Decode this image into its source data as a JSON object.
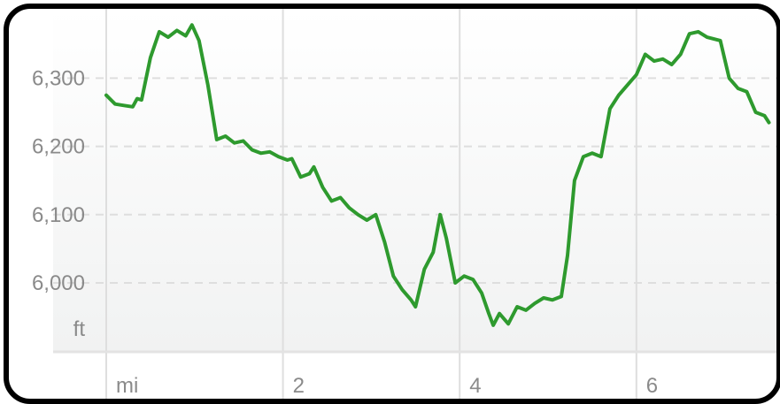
{
  "chart_data": {
    "type": "area",
    "y_ticks": [
      {
        "value": 6000,
        "label": "6,000"
      },
      {
        "value": 6100,
        "label": "6,100"
      },
      {
        "value": 6200,
        "label": "6,200"
      },
      {
        "value": 6300,
        "label": "6,300"
      }
    ],
    "x_ticks": [
      {
        "value": 0,
        "label": "mi"
      },
      {
        "value": 2,
        "label": "2"
      },
      {
        "value": 4,
        "label": "4"
      },
      {
        "value": 6,
        "label": "6"
      }
    ],
    "y_unit_label": "ft",
    "xlim": [
      -0.6,
      7.5
    ],
    "ylim": [
      5935,
      6395
    ],
    "grid": true,
    "colors": {
      "line": "#2e9a2e",
      "grid": "#dedede",
      "axis": "#e3e3e3"
    },
    "series": [
      {
        "values": [
          [
            0.0,
            6275
          ],
          [
            0.1,
            6262
          ],
          [
            0.2,
            6260
          ],
          [
            0.3,
            6258
          ],
          [
            0.35,
            6270
          ],
          [
            0.4,
            6268
          ],
          [
            0.5,
            6330
          ],
          [
            0.6,
            6368
          ],
          [
            0.7,
            6360
          ],
          [
            0.8,
            6370
          ],
          [
            0.9,
            6362
          ],
          [
            0.97,
            6378
          ],
          [
            1.05,
            6355
          ],
          [
            1.15,
            6290
          ],
          [
            1.25,
            6210
          ],
          [
            1.35,
            6215
          ],
          [
            1.45,
            6205
          ],
          [
            1.55,
            6208
          ],
          [
            1.65,
            6195
          ],
          [
            1.75,
            6190
          ],
          [
            1.85,
            6192
          ],
          [
            1.95,
            6185
          ],
          [
            2.05,
            6180
          ],
          [
            2.1,
            6182
          ],
          [
            2.2,
            6155
          ],
          [
            2.3,
            6160
          ],
          [
            2.35,
            6170
          ],
          [
            2.45,
            6140
          ],
          [
            2.55,
            6120
          ],
          [
            2.65,
            6125
          ],
          [
            2.75,
            6110
          ],
          [
            2.85,
            6100
          ],
          [
            2.95,
            6092
          ],
          [
            3.05,
            6100
          ],
          [
            3.15,
            6060
          ],
          [
            3.25,
            6010
          ],
          [
            3.35,
            5990
          ],
          [
            3.45,
            5975
          ],
          [
            3.5,
            5965
          ],
          [
            3.6,
            6020
          ],
          [
            3.7,
            6045
          ],
          [
            3.78,
            6100
          ],
          [
            3.85,
            6065
          ],
          [
            3.95,
            6000
          ],
          [
            4.05,
            6010
          ],
          [
            4.15,
            6005
          ],
          [
            4.25,
            5985
          ],
          [
            4.33,
            5955
          ],
          [
            4.38,
            5938
          ],
          [
            4.45,
            5955
          ],
          [
            4.55,
            5940
          ],
          [
            4.65,
            5965
          ],
          [
            4.75,
            5960
          ],
          [
            4.85,
            5970
          ],
          [
            4.95,
            5978
          ],
          [
            5.05,
            5975
          ],
          [
            5.15,
            5980
          ],
          [
            5.22,
            6040
          ],
          [
            5.3,
            6150
          ],
          [
            5.4,
            6185
          ],
          [
            5.5,
            6190
          ],
          [
            5.6,
            6185
          ],
          [
            5.7,
            6255
          ],
          [
            5.8,
            6275
          ],
          [
            5.9,
            6290
          ],
          [
            6.0,
            6305
          ],
          [
            6.1,
            6335
          ],
          [
            6.2,
            6325
          ],
          [
            6.3,
            6328
          ],
          [
            6.4,
            6320
          ],
          [
            6.5,
            6335
          ],
          [
            6.6,
            6365
          ],
          [
            6.7,
            6368
          ],
          [
            6.8,
            6360
          ],
          [
            6.95,
            6355
          ],
          [
            7.05,
            6300
          ],
          [
            7.15,
            6285
          ],
          [
            7.25,
            6280
          ],
          [
            7.35,
            6250
          ],
          [
            7.45,
            6245
          ],
          [
            7.5,
            6235
          ]
        ]
      }
    ]
  }
}
